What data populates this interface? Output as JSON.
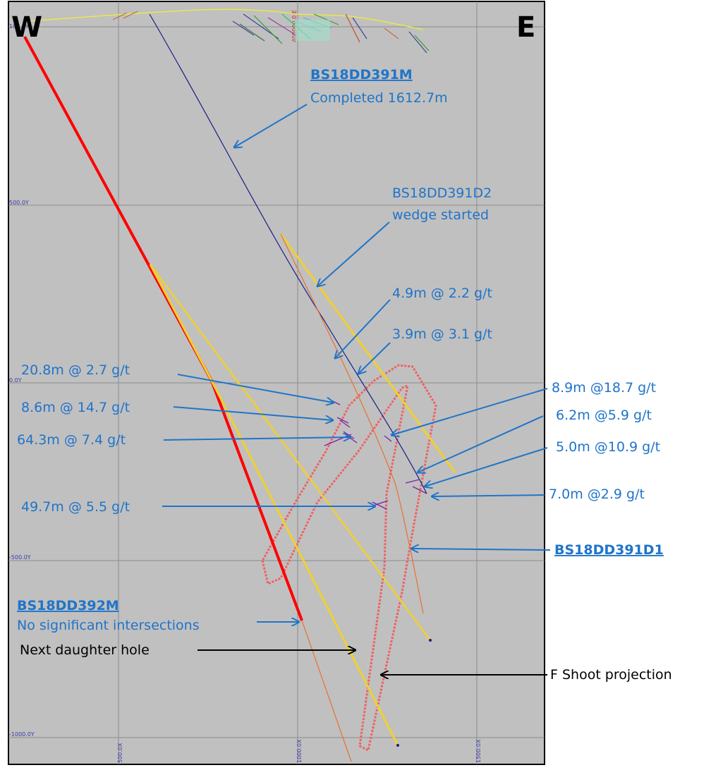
{
  "compass": {
    "west": "W",
    "east": "E"
  },
  "grid": {
    "y_labels": [
      "100.0Y",
      "500.0Y",
      "0.0Y",
      "-500.0Y",
      "-1000.0Y"
    ],
    "x_labels": [
      "500.0X",
      "1000.0X",
      "1500.0X"
    ],
    "easting_label": "400000.0 E"
  },
  "holes": {
    "bs18dd391m": {
      "name": "BS18DD391M",
      "status": "Completed 1612.7m"
    },
    "bs18dd391d2": {
      "line1": "BS18DD391D2",
      "line2": "wedge started"
    },
    "bs18dd391d1": {
      "name": "BS18DD391D1"
    },
    "bs18dd392m": {
      "name": "BS18DD392M",
      "status": "No significant intersections"
    }
  },
  "intersections": {
    "left": [
      "20.8m @ 2.7 g/t",
      "8.6m @ 14.7 g/t",
      "64.3m @ 7.4 g/t",
      "49.7m @ 5.5 g/t"
    ],
    "middle": [
      "4.9m @ 2.2 g/t",
      "3.9m @ 3.1 g/t"
    ],
    "right": [
      "8.9m @18.7 g/t",
      "6.2m @5.9 g/t",
      "5.0m @10.9 g/t",
      "7.0m @2.9 g/t"
    ]
  },
  "annotations": {
    "next_daughter": "Next daughter hole",
    "f_shoot": "F Shoot projection"
  },
  "colors": {
    "background": "#c0c0c0",
    "annotation_blue": "#1f74c9",
    "hole_392m": "#ff0000",
    "hole_391m": "#1a1a8c",
    "daughter_holes": "#f0d030",
    "hole_391d1": "#e87030",
    "f_shoot_outline": "#f06060"
  }
}
